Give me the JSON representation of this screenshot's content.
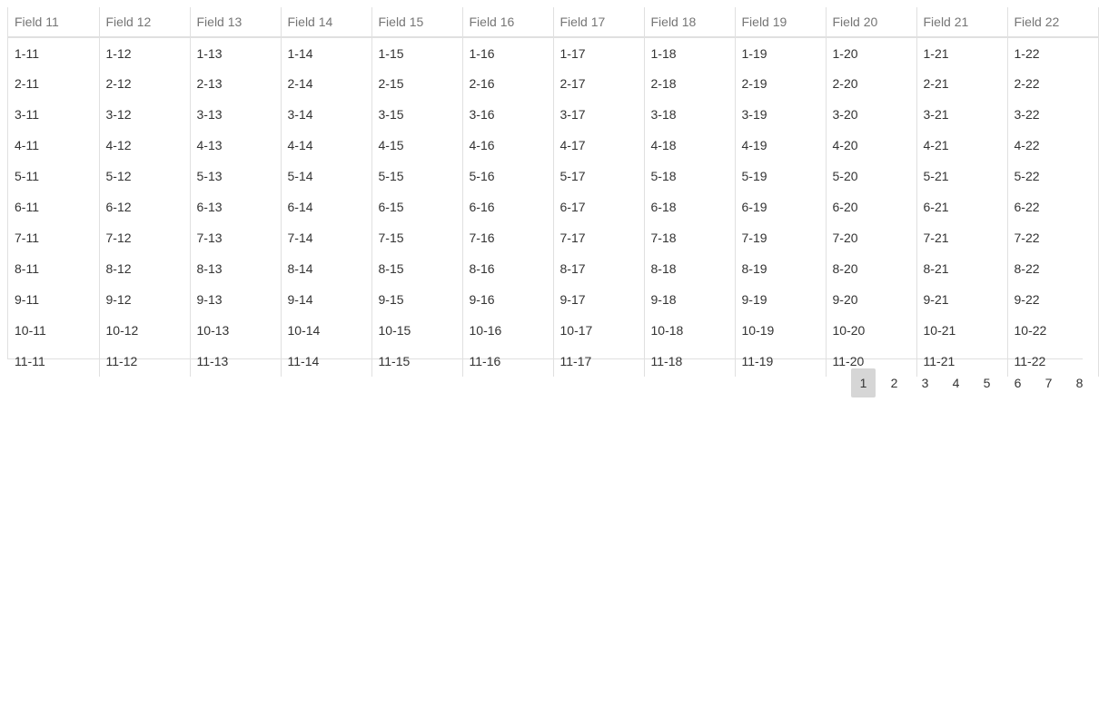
{
  "grid": {
    "columns": [
      "Field 11",
      "Field 12",
      "Field 13",
      "Field 14",
      "Field 15",
      "Field 16",
      "Field 17",
      "Field 18",
      "Field 19",
      "Field 20",
      "Field 21",
      "Field 22"
    ],
    "rows": [
      [
        "1-11",
        "1-12",
        "1-13",
        "1-14",
        "1-15",
        "1-16",
        "1-17",
        "1-18",
        "1-19",
        "1-20",
        "1-21",
        "1-22"
      ],
      [
        "2-11",
        "2-12",
        "2-13",
        "2-14",
        "2-15",
        "2-16",
        "2-17",
        "2-18",
        "2-19",
        "2-20",
        "2-21",
        "2-22"
      ],
      [
        "3-11",
        "3-12",
        "3-13",
        "3-14",
        "3-15",
        "3-16",
        "3-17",
        "3-18",
        "3-19",
        "3-20",
        "3-21",
        "3-22"
      ],
      [
        "4-11",
        "4-12",
        "4-13",
        "4-14",
        "4-15",
        "4-16",
        "4-17",
        "4-18",
        "4-19",
        "4-20",
        "4-21",
        "4-22"
      ],
      [
        "5-11",
        "5-12",
        "5-13",
        "5-14",
        "5-15",
        "5-16",
        "5-17",
        "5-18",
        "5-19",
        "5-20",
        "5-21",
        "5-22"
      ],
      [
        "6-11",
        "6-12",
        "6-13",
        "6-14",
        "6-15",
        "6-16",
        "6-17",
        "6-18",
        "6-19",
        "6-20",
        "6-21",
        "6-22"
      ],
      [
        "7-11",
        "7-12",
        "7-13",
        "7-14",
        "7-15",
        "7-16",
        "7-17",
        "7-18",
        "7-19",
        "7-20",
        "7-21",
        "7-22"
      ],
      [
        "8-11",
        "8-12",
        "8-13",
        "8-14",
        "8-15",
        "8-16",
        "8-17",
        "8-18",
        "8-19",
        "8-20",
        "8-21",
        "8-22"
      ],
      [
        "9-11",
        "9-12",
        "9-13",
        "9-14",
        "9-15",
        "9-16",
        "9-17",
        "9-18",
        "9-19",
        "9-20",
        "9-21",
        "9-22"
      ],
      [
        "10-11",
        "10-12",
        "10-13",
        "10-14",
        "10-15",
        "10-16",
        "10-17",
        "10-18",
        "10-19",
        "10-20",
        "10-21",
        "10-22"
      ],
      [
        "11-11",
        "11-12",
        "11-13",
        "11-14",
        "11-15",
        "11-16",
        "11-17",
        "11-18",
        "11-19",
        "11-20",
        "11-21",
        "11-22"
      ]
    ]
  },
  "pagination": {
    "pages": [
      "1",
      "2",
      "3",
      "4",
      "5",
      "6",
      "7",
      "8"
    ],
    "active_page": "1"
  },
  "colors": {
    "header_text": "#757575",
    "cell_text": "#333333",
    "border": "#e0e0e0",
    "active_page_bg": "#d6d6d6"
  }
}
